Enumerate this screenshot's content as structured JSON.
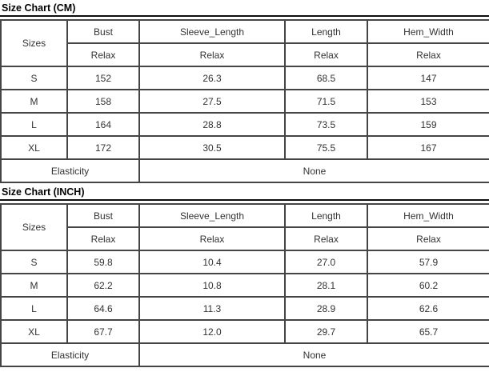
{
  "page": {
    "background": "#ffffff",
    "table_border_color": "#454545",
    "title_underline_color": "#0f0f0f",
    "text_color": "#333333"
  },
  "tables": [
    {
      "title": "Size Chart (CM)",
      "header": {
        "sizes_label": "Sizes",
        "columns": [
          "Bust",
          "Sleeve_Length",
          "Length",
          "Hem_Width"
        ],
        "sub": [
          "Relax",
          "Relax",
          "Relax",
          "Relax"
        ]
      },
      "rows": [
        {
          "size": "S",
          "values": [
            "152",
            "26.3",
            "68.5",
            "147"
          ]
        },
        {
          "size": "M",
          "values": [
            "158",
            "27.5",
            "71.5",
            "153"
          ]
        },
        {
          "size": "L",
          "values": [
            "164",
            "28.8",
            "73.5",
            "159"
          ]
        },
        {
          "size": "XL",
          "values": [
            "172",
            "30.5",
            "75.5",
            "167"
          ]
        }
      ],
      "footer": {
        "label": "Elasticity",
        "value": "None"
      }
    },
    {
      "title": "Size Chart (INCH)",
      "header": {
        "sizes_label": "Sizes",
        "columns": [
          "Bust",
          "Sleeve_Length",
          "Length",
          "Hem_Width"
        ],
        "sub": [
          "Relax",
          "Relax",
          "Relax",
          "Relax"
        ]
      },
      "rows": [
        {
          "size": "S",
          "values": [
            "59.8",
            "10.4",
            "27.0",
            "57.9"
          ]
        },
        {
          "size": "M",
          "values": [
            "62.2",
            "10.8",
            "28.1",
            "60.2"
          ]
        },
        {
          "size": "L",
          "values": [
            "64.6",
            "11.3",
            "28.9",
            "62.6"
          ]
        },
        {
          "size": "XL",
          "values": [
            "67.7",
            "12.0",
            "29.7",
            "65.7"
          ]
        }
      ],
      "footer": {
        "label": "Elasticity",
        "value": "None"
      }
    }
  ]
}
